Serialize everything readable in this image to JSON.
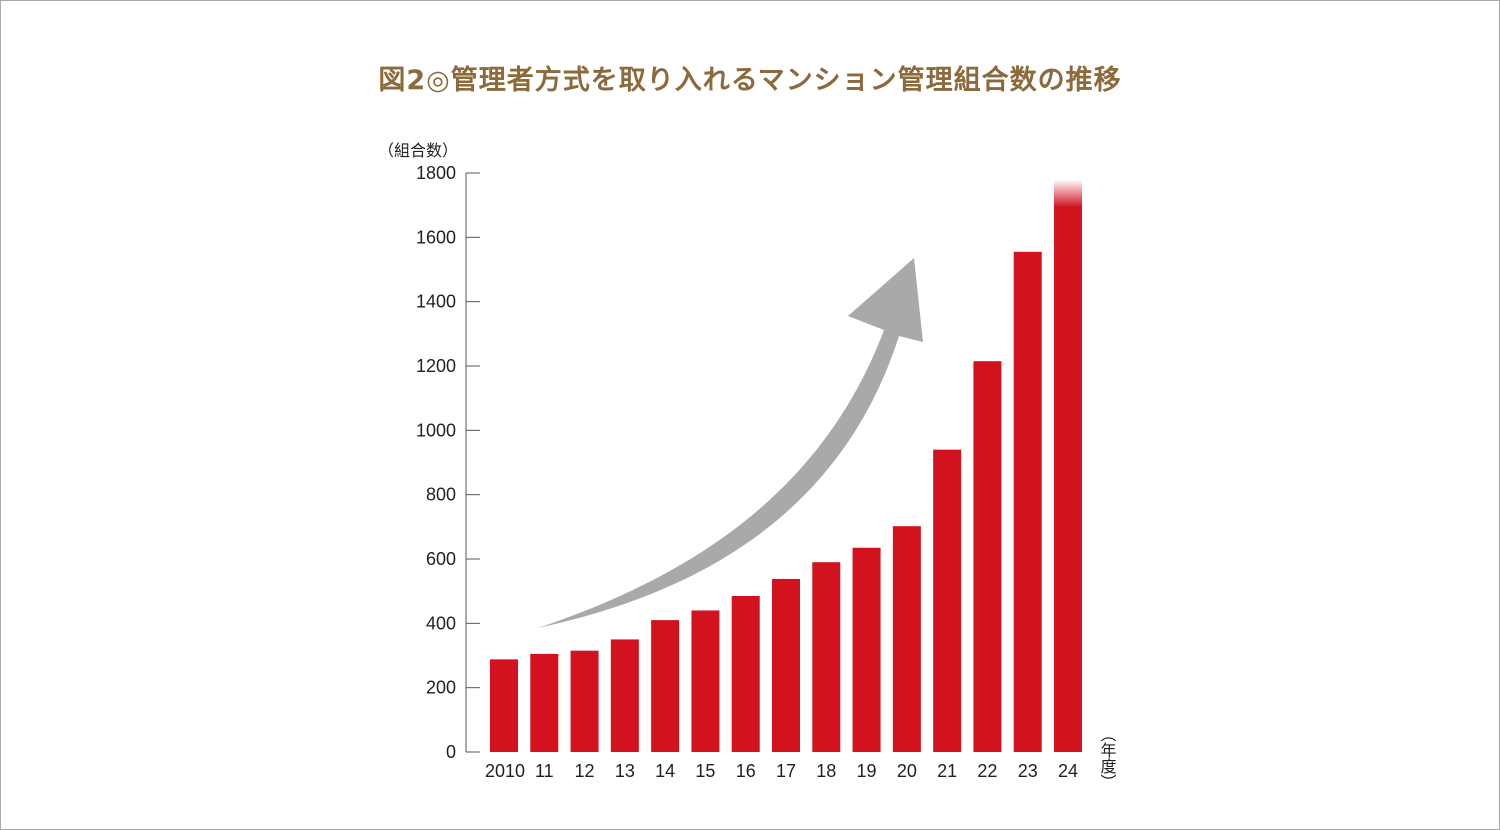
{
  "chart_data": {
    "type": "bar",
    "title": "図2◎管理者方式を取り入れるマンション管理組合数の推移",
    "ylabel": "（組合数）",
    "xlabel": "（年度）",
    "ylim": [
      0,
      1800
    ],
    "yticks": [
      0,
      200,
      400,
      600,
      800,
      1000,
      1200,
      1400,
      1600,
      1800
    ],
    "categories": [
      "2010",
      "11",
      "12",
      "13",
      "14",
      "15",
      "16",
      "17",
      "18",
      "19",
      "20",
      "21",
      "22",
      "23",
      "24"
    ],
    "values": [
      288,
      305,
      315,
      350,
      410,
      440,
      485,
      538,
      590,
      635,
      702,
      940,
      1215,
      1555,
      1780
    ],
    "colors": {
      "bar": "#d2121f",
      "arrow": "#a9a9a9",
      "title": "#8c6a3b",
      "axis": "#555555"
    }
  }
}
